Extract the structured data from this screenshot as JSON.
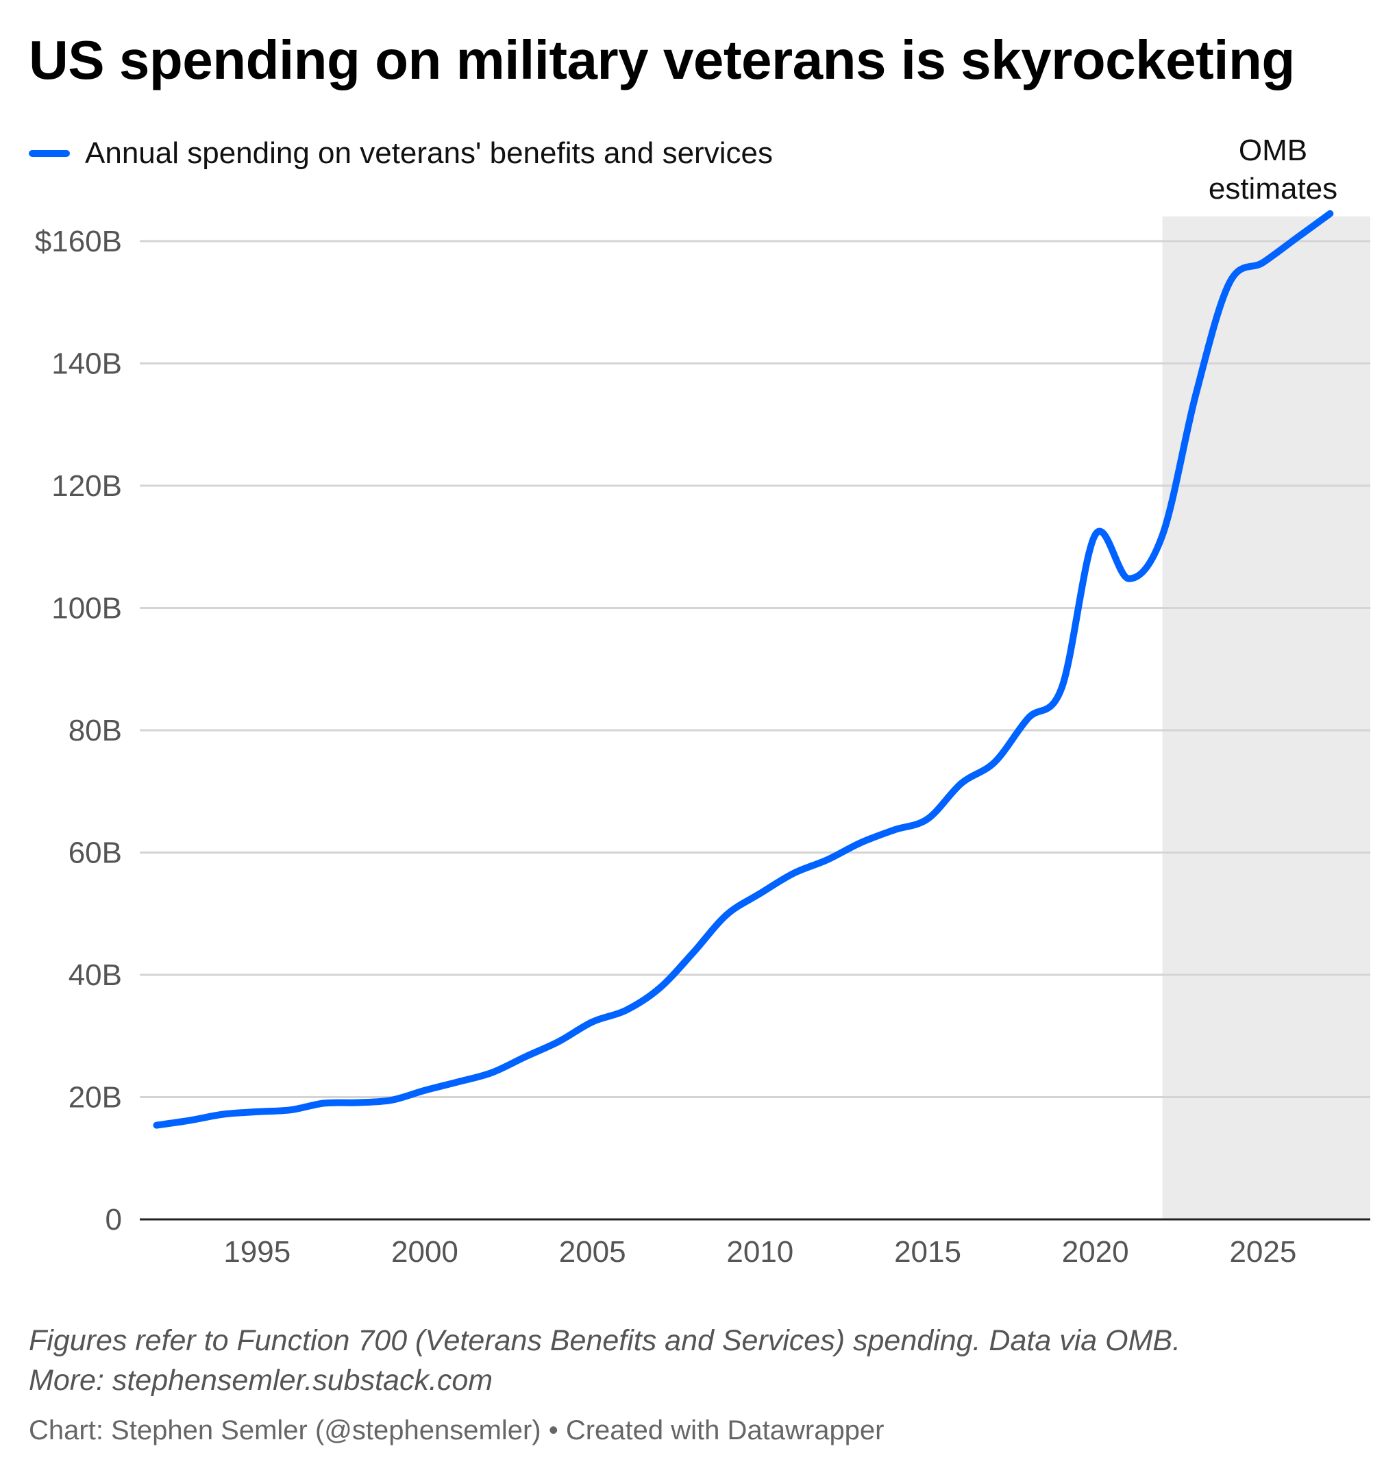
{
  "title": "US spending on military veterans is skyrocketing",
  "legend": {
    "label": "Annual spending on veterans' benefits and services",
    "color": "#0062ff"
  },
  "annotation": {
    "line1": "OMB",
    "line2": "estimates"
  },
  "notes": {
    "line1": "Figures refer to Function 700 (Veterans Benefits and Services) spending. Data via OMB.",
    "line2": "More: stephensemler.substack.com"
  },
  "credit": "Chart: Stephen Semler (@stephensemler) • Created with Datawrapper",
  "chart_data": {
    "type": "line",
    "title": "US spending on military veterans is skyrocketing",
    "xlabel": "",
    "ylabel": "",
    "xlim": [
      1991.5,
      2028.2
    ],
    "ylim": [
      0,
      160
    ],
    "yticks": [
      0,
      20,
      40,
      60,
      80,
      100,
      120,
      140,
      160
    ],
    "ytick_labels": [
      "0",
      "20B",
      "40B",
      "60B",
      "80B",
      "100B",
      "120B",
      "140B",
      "$160B"
    ],
    "xticks": [
      1995,
      2000,
      2005,
      2010,
      2015,
      2020,
      2025
    ],
    "xtick_labels": [
      "1995",
      "2000",
      "2005",
      "2010",
      "2015",
      "2020",
      "2025"
    ],
    "grid": true,
    "legend_position": "top-left",
    "shaded_region": {
      "x_start": 2022,
      "x_end": 2028.2,
      "label": "OMB estimates",
      "color": "#ebebeb"
    },
    "series": [
      {
        "name": "Annual spending on veterans' benefits and services",
        "color": "#0062ff",
        "x": [
          1992,
          1993,
          1994,
          1995,
          1996,
          1997,
          1998,
          1999,
          2000,
          2001,
          2002,
          2003,
          2004,
          2005,
          2006,
          2007,
          2008,
          2009,
          2010,
          2011,
          2012,
          2013,
          2014,
          2015,
          2016,
          2017,
          2018,
          2019,
          2020,
          2021,
          2022,
          2023,
          2024,
          2025,
          2026,
          2027
        ],
        "values": [
          15.4,
          16.2,
          17.2,
          17.6,
          17.9,
          19.0,
          19.1,
          19.5,
          21.1,
          22.5,
          24.0,
          26.6,
          29.1,
          32.3,
          34.2,
          37.8,
          43.6,
          49.8,
          53.3,
          56.6,
          58.8,
          61.6,
          63.7,
          65.5,
          71.3,
          74.8,
          82.0,
          87.0,
          112.0,
          104.8,
          111.9,
          135.0,
          153.2,
          156.5,
          160.5,
          164.5
        ]
      }
    ]
  }
}
